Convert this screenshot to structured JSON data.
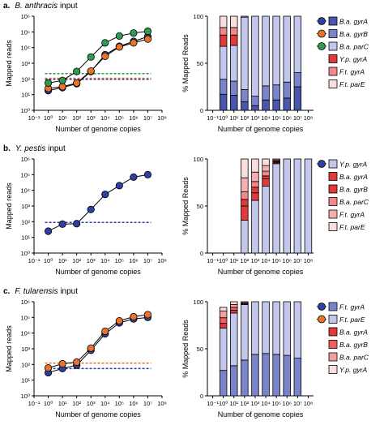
{
  "panels": [
    {
      "letter": "a.",
      "organism": "B. anthracis",
      "suffix": "input"
    },
    {
      "letter": "b.",
      "organism": "Y. pestis",
      "suffix": "input"
    },
    {
      "letter": "c.",
      "organism": "F. tularensis",
      "suffix": "input"
    }
  ],
  "colors": {
    "blue": "#2f3f9e",
    "orange": "#e8732c",
    "green": "#2e9a52",
    "dark_blue_bar": "#4a56ab",
    "mid_blue_bar": "#7a84c8",
    "light_lavender_bar": "#c3c7ec",
    "red": "#e03a3a",
    "pink": "#f08a8a",
    "light_pink": "#f9dede"
  },
  "chart_data": [
    {
      "type": "line",
      "panel": "a",
      "xlabel": "Number of genome copies",
      "ylabel": "Mapped reads",
      "x_scale": "log",
      "y_scale": "log",
      "xlim": [
        0.1,
        100000000
      ],
      "ylim": [
        1,
        1000000
      ],
      "x_ticks": [
        "10⁻¹",
        "10⁰",
        "10¹",
        "10²",
        "10³",
        "10⁴",
        "10⁵",
        "10⁶",
        "10⁷",
        "10⁸"
      ],
      "y_ticks": [
        "10⁰",
        "10¹",
        "10²",
        "10³",
        "10⁴",
        "10⁵",
        "10⁶"
      ],
      "series": [
        {
          "color": "#2f3f9e",
          "x": [
            1,
            10,
            100,
            1000,
            10000,
            100000,
            1000000,
            10000000
          ],
          "y": [
            18,
            28,
            50,
            300,
            3500,
            12000,
            25000,
            50000
          ]
        },
        {
          "color": "#e8732c",
          "x": [
            1,
            10,
            100,
            1000,
            10000,
            100000,
            1000000,
            10000000
          ],
          "y": [
            25,
            32,
            55,
            320,
            2800,
            11000,
            20000,
            35000
          ]
        },
        {
          "color": "#2e9a52",
          "x": [
            1,
            10,
            100,
            1000,
            10000,
            100000,
            1000000,
            10000000
          ],
          "y": [
            55,
            80,
            300,
            2500,
            20000,
            55000,
            85000,
            110000
          ]
        }
      ],
      "thresholds": [
        {
          "color": "#2e9a52",
          "y": 220
        },
        {
          "color": "#e8732c",
          "y": 110
        },
        {
          "color": "#2f3f9e",
          "y": 95
        }
      ]
    },
    {
      "type": "bar",
      "stacked": true,
      "panel": "a",
      "xlabel": "Number of genome copies",
      "ylabel": "% Mapped Reads",
      "ylim": [
        0,
        100
      ],
      "y_ticks": [
        "0",
        "50",
        "100"
      ],
      "categories": [
        "10⁻¹",
        "10⁰",
        "10¹",
        "10²",
        "10³",
        "10⁴",
        "10⁵",
        "10⁶",
        "10⁷",
        "10⁸"
      ],
      "series": [
        {
          "name_prefix": "B.a.",
          "name_gene": "gyrA",
          "color": "#4a56ab",
          "marker": "circle",
          "marker_color": "#2f3f9e",
          "values": [
            null,
            17,
            16,
            9,
            5,
            11,
            11,
            13,
            25,
            null
          ]
        },
        {
          "name_prefix": "B.a.",
          "name_gene": "gyrB",
          "color": "#7a84c8",
          "marker": "circle",
          "marker_color": "#e8732c",
          "values": [
            null,
            16,
            15,
            13,
            10,
            15,
            16,
            17,
            15,
            null
          ]
        },
        {
          "name_prefix": "B.a.",
          "name_gene": "parC",
          "color": "#c3c7ec",
          "marker": "circle",
          "marker_color": "#2e9a52",
          "values": [
            null,
            35,
            38,
            77,
            85,
            74,
            73,
            70,
            60,
            null
          ]
        },
        {
          "name_prefix": "Y.p.",
          "name_gene": "gyrA",
          "color": "#e03a3a",
          "values": [
            null,
            12,
            11,
            0,
            0,
            0,
            0,
            0,
            0,
            null
          ]
        },
        {
          "name_prefix": "F.t.",
          "name_gene": "gyrA",
          "color": "#f08a8a",
          "values": [
            null,
            8,
            8,
            0,
            0,
            0,
            0,
            0,
            0,
            null
          ]
        },
        {
          "name_prefix": "F.t.",
          "name_gene": "parE",
          "color": "#f9dede",
          "values": [
            null,
            12,
            12,
            1,
            0,
            0,
            0,
            0,
            0,
            null
          ]
        }
      ]
    },
    {
      "type": "line",
      "panel": "b",
      "xlabel": "Number of genome copies",
      "ylabel": "Mapped reads",
      "x_scale": "log",
      "y_scale": "log",
      "xlim": [
        0.1,
        100000000
      ],
      "ylim": [
        1,
        1000000
      ],
      "x_ticks": [
        "10⁻¹",
        "10⁰",
        "10¹",
        "10²",
        "10³",
        "10⁴",
        "10⁵",
        "10⁶",
        "10⁷",
        "10⁸"
      ],
      "y_ticks": [
        "10⁰",
        "10¹",
        "10²",
        "10³",
        "10⁴",
        "10⁵",
        "10⁶"
      ],
      "series": [
        {
          "color": "#2f3f9e",
          "x": [
            1,
            10,
            100,
            1000,
            10000,
            100000,
            1000000,
            10000000
          ],
          "y": [
            25,
            70,
            75,
            600,
            5500,
            20000,
            70000,
            100000
          ]
        }
      ],
      "thresholds": [
        {
          "color": "#2f3f9e",
          "y": 90
        }
      ]
    },
    {
      "type": "bar",
      "stacked": true,
      "panel": "b",
      "xlabel": "Number of genome copies",
      "ylabel": "% Mapped Reads",
      "ylim": [
        0,
        100
      ],
      "y_ticks": [
        "0",
        "50",
        "100"
      ],
      "categories": [
        "10⁻¹",
        "10⁰",
        "10¹",
        "10²",
        "10³",
        "10⁴",
        "10⁵",
        "10⁶",
        "10⁷",
        "10⁸"
      ],
      "series": [
        {
          "name_prefix": "Y.p.",
          "name_gene": "gyrA",
          "color": "#c3c7ec",
          "marker": "circle",
          "marker_color": "#2f3f9e",
          "values": [
            null,
            null,
            null,
            35,
            56,
            71,
            95,
            100,
            100,
            100
          ]
        },
        {
          "name_prefix": "B.a.",
          "name_gene": "gyrA",
          "color": "#e03a3a",
          "values": [
            null,
            null,
            null,
            15,
            8,
            8,
            1,
            0,
            0,
            0
          ]
        },
        {
          "name_prefix": "B.a.",
          "name_gene": "gyrB",
          "color": "#e03a3a",
          "values": [
            null,
            null,
            null,
            7,
            6,
            3,
            1,
            0,
            0,
            0
          ]
        },
        {
          "name_prefix": "B.a.",
          "name_gene": "parC",
          "color": "#f08a8a",
          "values": [
            null,
            null,
            null,
            8,
            6,
            5,
            1,
            0,
            0,
            0
          ]
        },
        {
          "name_prefix": "F.t.",
          "name_gene": "gyrA",
          "color": "#f4b0b0",
          "values": [
            null,
            null,
            null,
            15,
            10,
            6,
            1,
            0,
            0,
            0
          ]
        },
        {
          "name_prefix": "F.t.",
          "name_gene": "parE",
          "color": "#f9dede",
          "values": [
            null,
            null,
            null,
            20,
            14,
            7,
            1,
            0,
            0,
            0
          ]
        }
      ]
    },
    {
      "type": "line",
      "panel": "c",
      "xlabel": "Number of genome copies",
      "ylabel": "Mapped reads",
      "x_scale": "log",
      "y_scale": "log",
      "xlim": [
        0.1,
        100000000
      ],
      "ylim": [
        1,
        1000000
      ],
      "x_ticks": [
        "10⁻¹",
        "10⁰",
        "10¹",
        "10²",
        "10³",
        "10⁴",
        "10⁵",
        "10⁶",
        "10⁷",
        "10⁸"
      ],
      "y_ticks": [
        "10⁰",
        "10¹",
        "10²",
        "10³",
        "10⁴",
        "10⁵",
        "10⁶"
      ],
      "series": [
        {
          "color": "#2f3f9e",
          "x": [
            1,
            10,
            100,
            1000,
            10000,
            100000,
            1000000,
            10000000
          ],
          "y": [
            30,
            55,
            90,
            800,
            9000,
            45000,
            80000,
            100000
          ]
        },
        {
          "color": "#e8732c",
          "x": [
            1,
            10,
            100,
            1000,
            10000,
            100000,
            1000000,
            10000000
          ],
          "y": [
            60,
            110,
            140,
            1100,
            13000,
            60000,
            110000,
            150000
          ]
        }
      ],
      "thresholds": [
        {
          "color": "#e8732c",
          "y": 120
        },
        {
          "color": "#2f3f9e",
          "y": 55
        }
      ]
    },
    {
      "type": "bar",
      "stacked": true,
      "panel": "c",
      "xlabel": "Number of genome copies",
      "ylabel": "% Mapped Reads",
      "ylim": [
        0,
        100
      ],
      "y_ticks": [
        "0",
        "50",
        "100"
      ],
      "categories": [
        "10⁻¹",
        "10⁰",
        "10¹",
        "10²",
        "10³",
        "10⁴",
        "10⁵",
        "10⁶",
        "10⁷",
        "10⁸"
      ],
      "series": [
        {
          "name_prefix": "F.t.",
          "name_gene": "gyrA",
          "color": "#7a84c8",
          "marker": "circle",
          "marker_color": "#2f3f9e",
          "values": [
            null,
            27,
            32,
            38,
            44,
            45,
            44,
            43,
            40,
            null
          ]
        },
        {
          "name_prefix": "F.t.",
          "name_gene": "parE",
          "color": "#c3c7ec",
          "marker": "circle",
          "marker_color": "#e8732c",
          "values": [
            null,
            45,
            56,
            59,
            56,
            55,
            56,
            57,
            60,
            null
          ]
        },
        {
          "name_prefix": "B.a.",
          "name_gene": "gyrA",
          "color": "#e03a3a",
          "values": [
            null,
            5,
            3,
            1,
            0,
            0,
            0,
            0,
            0,
            null
          ]
        },
        {
          "name_prefix": "B.a.",
          "name_gene": "gyrB",
          "color": "#f06060",
          "values": [
            null,
            6,
            3,
            1,
            0,
            0,
            0,
            0,
            0,
            null
          ]
        },
        {
          "name_prefix": "B.a.",
          "name_gene": "parC",
          "color": "#f4a0a0",
          "values": [
            null,
            7,
            3,
            1,
            0,
            0,
            0,
            0,
            0,
            null
          ]
        },
        {
          "name_prefix": "Y.p.",
          "name_gene": "gyrA",
          "color": "#f9dede",
          "values": [
            null,
            4,
            3,
            0,
            0,
            0,
            0,
            0,
            0,
            null
          ]
        }
      ]
    }
  ]
}
